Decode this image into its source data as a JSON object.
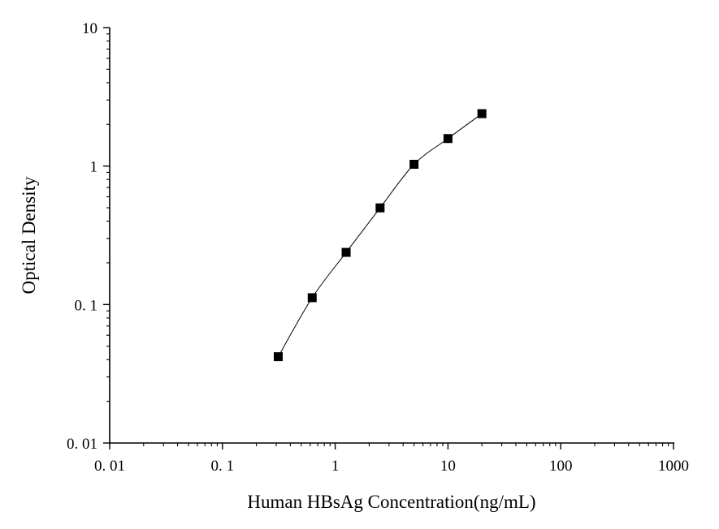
{
  "chart_data": {
    "type": "scatter",
    "title": "",
    "xlabel": "Human HBsAg Concentration(ng/mL)",
    "ylabel": "Optical Density",
    "x_scale": "log",
    "y_scale": "log",
    "xlim": [
      0.01,
      1000
    ],
    "ylim": [
      0.01,
      10
    ],
    "x_ticks": [
      {
        "value": 0.01,
        "label": "0. 01"
      },
      {
        "value": 0.1,
        "label": "0. 1"
      },
      {
        "value": 1,
        "label": "1"
      },
      {
        "value": 10,
        "label": "10"
      },
      {
        "value": 100,
        "label": "100"
      },
      {
        "value": 1000,
        "label": "1000"
      }
    ],
    "y_ticks": [
      {
        "value": 0.01,
        "label": "0. 01"
      },
      {
        "value": 0.1,
        "label": "0. 1"
      },
      {
        "value": 1,
        "label": "1"
      },
      {
        "value": 10,
        "label": "10"
      }
    ],
    "grid": false,
    "legend": "none",
    "series": [
      {
        "x": [
          0.3125,
          0.625,
          1.25,
          2.5,
          5,
          10,
          20
        ],
        "y": [
          0.042,
          0.112,
          0.238,
          0.499,
          1.03,
          1.58,
          2.39
        ],
        "marker": "square",
        "line": "smooth",
        "color": "#000000"
      }
    ]
  }
}
